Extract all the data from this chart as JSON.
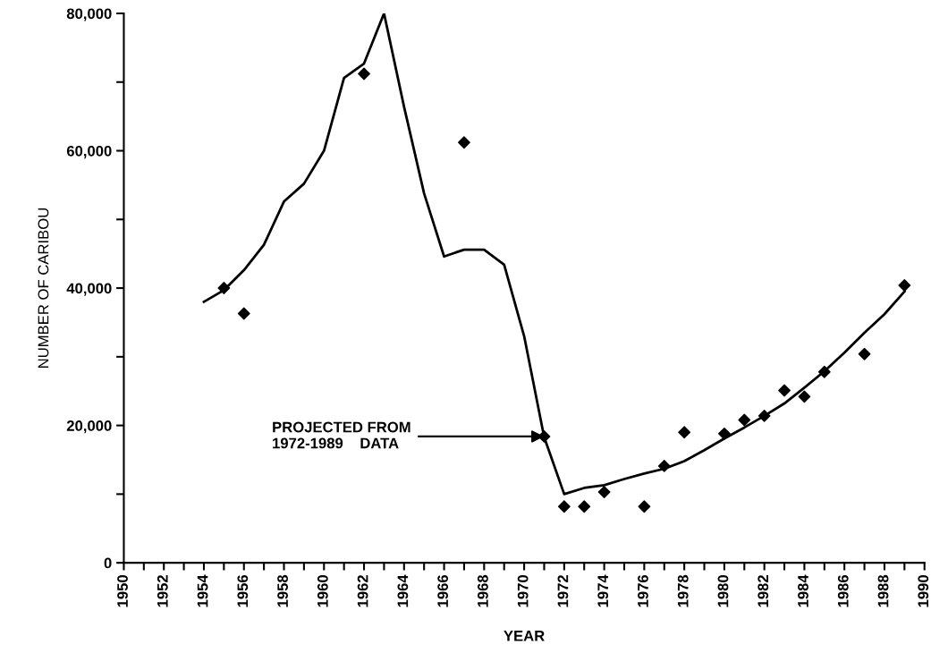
{
  "chart_data": {
    "type": "line",
    "xlabel": "YEAR",
    "ylabel": "NUMBER OF CARIBOU",
    "xlim": [
      1950,
      1990
    ],
    "xticks": [
      1950,
      {
        "value": 1951,
        "label": null
      },
      1952,
      {
        "value": 1953,
        "label": null
      },
      1954,
      {
        "value": 1955,
        "label": null
      },
      1956,
      {
        "value": 1957,
        "label": null
      },
      1958,
      {
        "value": 1959,
        "label": null
      },
      1960,
      {
        "value": 1961,
        "label": null
      },
      1962,
      {
        "value": 1963,
        "label": null
      },
      1964,
      {
        "value": 1965,
        "label": null
      },
      1966,
      {
        "value": 1967,
        "label": null
      },
      1968,
      {
        "value": 1969,
        "label": null
      },
      1970,
      {
        "value": 1971,
        "label": null
      },
      1972,
      {
        "value": 1973,
        "label": null
      },
      1974,
      {
        "value": 1975,
        "label": null
      },
      1976,
      {
        "value": 1977,
        "label": null
      },
      1978,
      {
        "value": 1979,
        "label": null
      },
      1980,
      {
        "value": 1981,
        "label": null
      },
      1982,
      {
        "value": 1983,
        "label": null
      },
      1984,
      {
        "value": 1985,
        "label": null
      },
      1986,
      {
        "value": 1987,
        "label": null
      },
      1988,
      {
        "value": 1989,
        "label": null
      },
      1990
    ],
    "ylim": [
      0,
      80000
    ],
    "yticks": [
      0,
      {
        "value": 10000,
        "label": null
      },
      {
        "value": 20000,
        "label": "20,000"
      },
      {
        "value": 30000,
        "label": null
      },
      {
        "value": 40000,
        "label": "40,000"
      },
      {
        "value": 50000,
        "label": null
      },
      {
        "value": 60000,
        "label": "60,000"
      },
      {
        "value": 70000,
        "label": null
      },
      {
        "value": 80000,
        "label": "80,000"
      }
    ],
    "grid": false,
    "legend": false,
    "series": [
      {
        "color": "#000000",
        "marker": "none",
        "line_style": "solid",
        "x": [
          1954,
          1955,
          1956,
          1957,
          1958,
          1959,
          1960,
          1961,
          1962,
          1963,
          1964,
          1965,
          1966,
          1967,
          1968,
          1969,
          1970,
          1971,
          1972,
          1973,
          1974,
          1975,
          1976,
          1977,
          1978,
          1979,
          1980,
          1981,
          1982,
          1983,
          1984,
          1985,
          1986,
          1987,
          1988,
          1989
        ],
        "values": [
          38000,
          39700,
          42600,
          46300,
          52600,
          55200,
          60000,
          70600,
          72700,
          80000,
          66400,
          53800,
          44600,
          45600,
          45600,
          43400,
          33000,
          18300,
          10000,
          10900,
          11300,
          12200,
          13000,
          13700,
          14800,
          16400,
          18100,
          19700,
          21400,
          23200,
          25500,
          27900,
          30600,
          33500,
          36200,
          39500
        ]
      },
      {
        "type": "scatter",
        "color": "#000000",
        "marker": "diamond",
        "x": [
          1955,
          1956,
          1962,
          1967,
          1971,
          1972,
          1973,
          1974,
          1976,
          1977,
          1978,
          1980,
          1981,
          1982,
          1983,
          1984,
          1985,
          1987,
          1989
        ],
        "values": [
          40000,
          36300,
          71200,
          61200,
          18400,
          8200,
          8200,
          10300,
          8200,
          14100,
          19000,
          18800,
          20800,
          21400,
          25100,
          24200,
          27800,
          30400,
          40400
        ]
      }
    ],
    "annotations": [
      {
        "text": "PROJECTED FROM\n1972-1989    DATA",
        "x": 1971,
        "y": 18400
      }
    ]
  }
}
